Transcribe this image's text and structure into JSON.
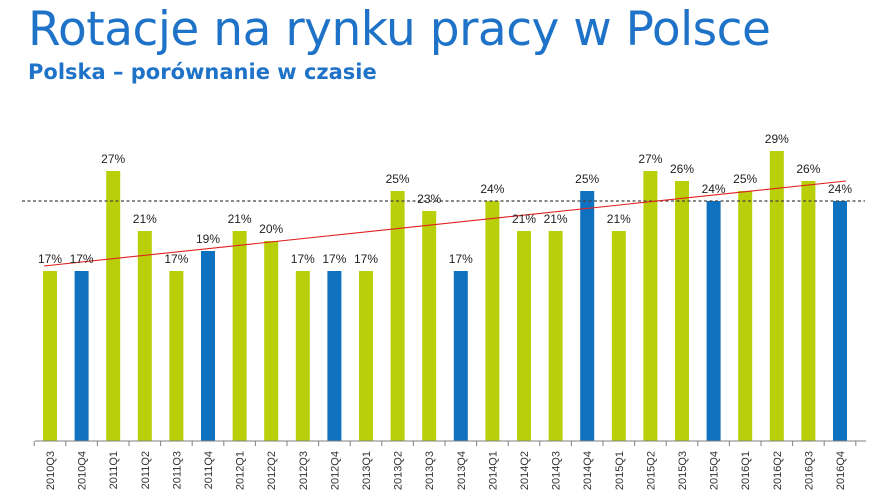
{
  "header": {
    "title": "Rotacje na rynku pracy w Polsce",
    "subtitle": "Polska – porównanie w czasie"
  },
  "colors": {
    "green": "#b8cf0a",
    "blue": "#0f72c1",
    "trend": "#e02020",
    "reference": "#444444",
    "axis": "#7f7f7f",
    "label": "#222222"
  },
  "chart_data": {
    "type": "bar",
    "categories": [
      "2010Q3",
      "2010Q4",
      "2011Q1",
      "2011Q2",
      "2011Q3",
      "2011Q4",
      "2012Q1",
      "2012Q2",
      "2012Q3",
      "2012Q4",
      "2013Q1",
      "2013Q2",
      "2013Q3",
      "2013Q4",
      "2014Q1",
      "2014Q2",
      "2014Q3",
      "2014Q4",
      "2015Q1",
      "2015Q2",
      "2015Q3",
      "2015Q4",
      "2016Q1",
      "2016Q2",
      "2016Q3",
      "2016Q4"
    ],
    "values": [
      17,
      17,
      27,
      21,
      17,
      19,
      21,
      20,
      17,
      17,
      17,
      25,
      23,
      17,
      24,
      21,
      21,
      25,
      21,
      27,
      26,
      24,
      25,
      29,
      26,
      24
    ],
    "value_labels": [
      "17%",
      "17%",
      "27%",
      "21%",
      "17%",
      "19%",
      "21%",
      "20%",
      "17%",
      "17%",
      "17%",
      "25%",
      "23%",
      "17%",
      "24%",
      "21%",
      "21%",
      "25%",
      "21%",
      "27%",
      "26%",
      "24%",
      "25%",
      "29%",
      "26%",
      "24%"
    ],
    "bar_colors": [
      "green",
      "blue",
      "green",
      "green",
      "green",
      "blue",
      "green",
      "green",
      "green",
      "blue",
      "green",
      "green",
      "green",
      "blue",
      "green",
      "green",
      "green",
      "blue",
      "green",
      "green",
      "green",
      "blue",
      "green",
      "green",
      "green",
      "blue"
    ],
    "reference_line": 24,
    "trend_line": {
      "start": 17.5,
      "end": 26
    },
    "ylim": [
      0,
      30
    ],
    "xlabel": "",
    "ylabel": "",
    "grid": false,
    "legend": "none"
  }
}
